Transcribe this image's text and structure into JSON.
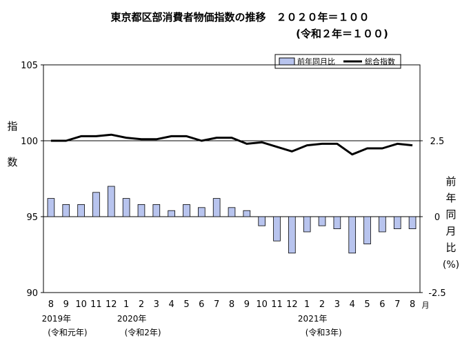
{
  "title_line1": "東京都区部消費者物価指数の推移　２０２０年＝１００",
  "title_line2": "(令和２年＝１００)",
  "legend": {
    "bar_label": "前年同月比",
    "line_label": "総合指数",
    "placement": "top-right"
  },
  "left_axis_title": [
    "指",
    "数"
  ],
  "right_axis_title": [
    "前",
    "年",
    "同",
    "月",
    "比",
    "(%)"
  ],
  "month_suffix": "月",
  "year_labels": [
    {
      "year": "2019年",
      "era": "(令和元年)",
      "at_index": 0
    },
    {
      "year": "2020年",
      "era": "(令和2年)",
      "at_index": 5
    },
    {
      "year": "2021年",
      "era": "(令和3年)",
      "at_index": 17
    }
  ],
  "chart_data": {
    "type": "bar+line",
    "categories": [
      "8",
      "9",
      "10",
      "11",
      "12",
      "1",
      "2",
      "3",
      "4",
      "5",
      "6",
      "7",
      "8",
      "9",
      "10",
      "11",
      "12",
      "1",
      "2",
      "3",
      "4",
      "5",
      "6",
      "7",
      "8"
    ],
    "series": [
      {
        "name": "総合指数",
        "type": "line",
        "axis": "left",
        "values": [
          100.0,
          100.0,
          100.3,
          100.3,
          100.4,
          100.2,
          100.1,
          100.1,
          100.3,
          100.3,
          100.0,
          100.2,
          100.2,
          99.8,
          99.9,
          99.6,
          99.3,
          99.7,
          99.8,
          99.8,
          99.1,
          99.5,
          99.5,
          99.8,
          99.7
        ]
      },
      {
        "name": "前年同月比",
        "type": "bar",
        "axis": "right",
        "values": [
          0.6,
          0.4,
          0.4,
          0.8,
          1.0,
          0.6,
          0.4,
          0.4,
          0.2,
          0.4,
          0.3,
          0.6,
          0.3,
          0.2,
          -0.3,
          -0.8,
          -1.2,
          -0.5,
          -0.3,
          -0.4,
          -1.2,
          -0.9,
          -0.5,
          -0.4,
          -0.4
        ]
      }
    ],
    "left_axis": {
      "ylim": [
        90,
        105
      ],
      "ticks": [
        "90",
        "95",
        "100",
        "105"
      ]
    },
    "right_axis": {
      "ylim": [
        -2.5,
        5
      ],
      "ticks": [
        "-2.5",
        "0",
        "2.5"
      ]
    },
    "reference_lines": [
      "100",
      "0"
    ],
    "grid": false,
    "colors": {
      "bar_fill": "#b8c4ee",
      "bar_stroke": "#000000",
      "line": "#000000"
    }
  }
}
